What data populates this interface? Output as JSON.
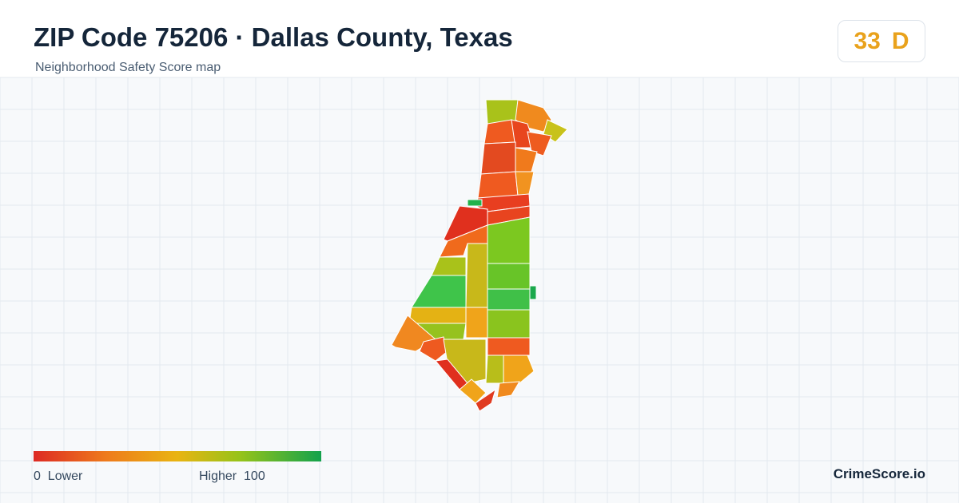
{
  "header": {
    "title": "ZIP Code 75206 · Dallas County, Texas",
    "subtitle": "Neighborhood Safety Score map"
  },
  "score": {
    "value": "33",
    "grade": "D"
  },
  "legend": {
    "min": "0",
    "min_label": "Lower",
    "max_label": "Higher",
    "max": "100"
  },
  "brand": "CrimeScore.io"
}
